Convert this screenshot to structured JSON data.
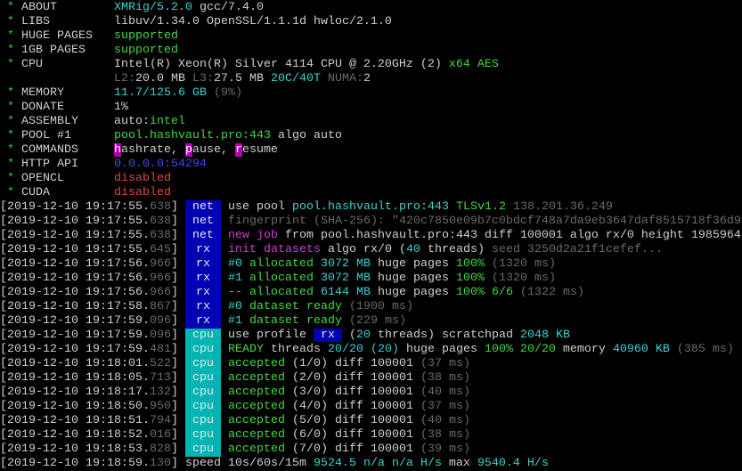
{
  "colors": {
    "white": "#d0d0d0",
    "green": "#41d941",
    "cyan": "#3cd2d2",
    "dim": "#6a6a6a",
    "magenta": "#d23cd2",
    "blue": "#4646e6",
    "red": "#e04646",
    "tag_blue": "#0000b4",
    "tag_cyan": "#00b4b4"
  },
  "header": [
    {
      "bullet": "*",
      "label": "ABOUT",
      "segs": [
        {
          "t": "XMRig/5.2.0",
          "c": "c"
        },
        {
          "t": " gcc/7.4.0",
          "c": "w"
        }
      ]
    },
    {
      "bullet": "*",
      "label": "LIBS",
      "segs": [
        {
          "t": "libuv/1.34.0 OpenSSL/1.1.1d hwloc/2.1.0",
          "c": "w"
        }
      ]
    },
    {
      "bullet": "*",
      "label": "HUGE PAGES",
      "segs": [
        {
          "t": "supported",
          "c": "g"
        }
      ]
    },
    {
      "bullet": "*",
      "label": "1GB PAGES",
      "segs": [
        {
          "t": "supported",
          "c": "g"
        }
      ]
    },
    {
      "bullet": "*",
      "label": "CPU",
      "segs": [
        {
          "t": "Intel(R) Xeon(R) Silver 4114 CPU @ 2.20GHz (2) ",
          "c": "w"
        },
        {
          "t": "x64 AES",
          "c": "g"
        }
      ]
    },
    {
      "bullet": "",
      "label": "",
      "segs": [
        {
          "t": "L2:",
          "c": "d"
        },
        {
          "t": "20.0 MB ",
          "c": "w"
        },
        {
          "t": "L3:",
          "c": "d"
        },
        {
          "t": "27.5 MB ",
          "c": "w"
        },
        {
          "t": "20C/40T ",
          "c": "c"
        },
        {
          "t": "NUMA:",
          "c": "d"
        },
        {
          "t": "2",
          "c": "w"
        }
      ]
    },
    {
      "bullet": "*",
      "label": "MEMORY",
      "segs": [
        {
          "t": "11.7/125.6 GB ",
          "c": "c"
        },
        {
          "t": "(9%)",
          "c": "d"
        }
      ]
    },
    {
      "bullet": "*",
      "label": "DONATE",
      "segs": [
        {
          "t": "1%",
          "c": "w"
        }
      ]
    },
    {
      "bullet": "*",
      "label": "ASSEMBLY",
      "segs": [
        {
          "t": "auto:",
          "c": "w"
        },
        {
          "t": "intel",
          "c": "g"
        }
      ]
    },
    {
      "bullet": "*",
      "label": "POOL #1",
      "segs": [
        {
          "t": "pool.hashvault.pro:443 ",
          "c": "g"
        },
        {
          "t": "algo auto",
          "c": "w"
        }
      ]
    },
    {
      "bullet": "*",
      "label": "COMMANDS",
      "segs": [
        {
          "t": "h",
          "c": "hl"
        },
        {
          "t": "ashrate, ",
          "c": "w"
        },
        {
          "t": "p",
          "c": "hl"
        },
        {
          "t": "ause, ",
          "c": "w"
        },
        {
          "t": "r",
          "c": "hl"
        },
        {
          "t": "esume",
          "c": "w"
        }
      ]
    },
    {
      "bullet": "*",
      "label": "HTTP API",
      "segs": [
        {
          "t": "0.0.0.0:54294",
          "c": "b"
        }
      ]
    },
    {
      "bullet": "*",
      "label": "OPENCL",
      "segs": [
        {
          "t": "disabled",
          "c": "r"
        }
      ]
    },
    {
      "bullet": "*",
      "label": "CUDA",
      "segs": [
        {
          "t": "disabled",
          "c": "r"
        }
      ]
    }
  ],
  "log": [
    {
      "time": "2019-12-10 19:17:55",
      "ms": "638",
      "tag": "net",
      "segs": [
        {
          "t": "use pool ",
          "c": "w"
        },
        {
          "t": "pool.hashvault.pro:443 ",
          "c": "c"
        },
        {
          "t": "TLSv1.2 ",
          "c": "g"
        },
        {
          "t": "138.201.36.249",
          "c": "d"
        }
      ]
    },
    {
      "time": "2019-12-10 19:17:55",
      "ms": "638",
      "tag": "net",
      "segs": [
        {
          "t": "fingerprint (SHA-256): \"420c7850e09b7c0bdcf748a7da9eb3647daf8515718f36d9",
          "c": "d"
        }
      ]
    },
    {
      "time": "2019-12-10 19:17:55",
      "ms": "638",
      "tag": "net",
      "segs": [
        {
          "t": "new job",
          "c": "m"
        },
        {
          "t": " from pool.hashvault.pro:443 diff 100001 algo rx/0 height 1985964",
          "c": "w"
        }
      ]
    },
    {
      "time": "2019-12-10 19:17:55",
      "ms": "645",
      "tag": "rx",
      "segs": [
        {
          "t": "init datasets",
          "c": "m"
        },
        {
          "t": " algo rx/0 (",
          "c": "w"
        },
        {
          "t": "40",
          "c": "c"
        },
        {
          "t": " threads) ",
          "c": "w"
        },
        {
          "t": "seed 3250d2a21f1cefef...",
          "c": "d"
        }
      ]
    },
    {
      "time": "2019-12-10 19:17:56",
      "ms": "966",
      "tag": "rx",
      "segs": [
        {
          "t": "#0",
          "c": "c"
        },
        {
          "t": " allocated",
          "c": "g"
        },
        {
          "t": " 3072 MB",
          "c": "c"
        },
        {
          "t": " huge pages ",
          "c": "w"
        },
        {
          "t": "100%",
          "c": "g"
        },
        {
          "t": " (1320 ms)",
          "c": "d"
        }
      ]
    },
    {
      "time": "2019-12-10 19:17:56",
      "ms": "966",
      "tag": "rx",
      "segs": [
        {
          "t": "#1",
          "c": "c"
        },
        {
          "t": " allocated",
          "c": "g"
        },
        {
          "t": " 3072 MB",
          "c": "c"
        },
        {
          "t": " huge pages ",
          "c": "w"
        },
        {
          "t": "100%",
          "c": "g"
        },
        {
          "t": " (1320 ms)",
          "c": "d"
        }
      ]
    },
    {
      "time": "2019-12-10 19:17:56",
      "ms": "966",
      "tag": "rx",
      "segs": [
        {
          "t": "--",
          "c": "c"
        },
        {
          "t": " allocated",
          "c": "g"
        },
        {
          "t": " 6144 MB",
          "c": "c"
        },
        {
          "t": " huge pages ",
          "c": "w"
        },
        {
          "t": "100% 6/6",
          "c": "g"
        },
        {
          "t": " (1322 ms)",
          "c": "d"
        }
      ]
    },
    {
      "time": "2019-12-10 19:17:58",
      "ms": "867",
      "tag": "rx",
      "segs": [
        {
          "t": "#0",
          "c": "c"
        },
        {
          "t": " dataset ready",
          "c": "g"
        },
        {
          "t": " (1900 ms)",
          "c": "d"
        }
      ]
    },
    {
      "time": "2019-12-10 19:17:59",
      "ms": "096",
      "tag": "rx",
      "segs": [
        {
          "t": "#1",
          "c": "c"
        },
        {
          "t": " dataset ready",
          "c": "g"
        },
        {
          "t": " (229 ms)",
          "c": "d"
        }
      ]
    },
    {
      "time": "2019-12-10 19:17:59",
      "ms": "096",
      "tag": "cpu",
      "segs": [
        {
          "t": "use profile ",
          "c": "w"
        },
        {
          "t": " rx ",
          "c": "bx"
        },
        {
          "t": " (",
          "c": "w"
        },
        {
          "t": "20",
          "c": "c"
        },
        {
          "t": " threads) scratchpad ",
          "c": "w"
        },
        {
          "t": "2048 KB",
          "c": "c"
        }
      ]
    },
    {
      "time": "2019-12-10 19:17:59",
      "ms": "481",
      "tag": "cpu",
      "segs": [
        {
          "t": "READY",
          "c": "g"
        },
        {
          "t": " threads ",
          "c": "w"
        },
        {
          "t": "20/20 (20)",
          "c": "c"
        },
        {
          "t": " huge pages ",
          "c": "w"
        },
        {
          "t": "100% 20/20",
          "c": "g"
        },
        {
          "t": " memory ",
          "c": "w"
        },
        {
          "t": "40960 KB",
          "c": "c"
        },
        {
          "t": " (385 ms)",
          "c": "d"
        }
      ]
    },
    {
      "time": "2019-12-10 19:18:01",
      "ms": "522",
      "tag": "cpu",
      "segs": [
        {
          "t": "accepted",
          "c": "g"
        },
        {
          "t": " (1/0) diff 100001 ",
          "c": "w"
        },
        {
          "t": "(37 ms)",
          "c": "d"
        }
      ]
    },
    {
      "time": "2019-12-10 19:18:05",
      "ms": "713",
      "tag": "cpu",
      "segs": [
        {
          "t": "accepted",
          "c": "g"
        },
        {
          "t": " (2/0) diff 100001 ",
          "c": "w"
        },
        {
          "t": "(38 ms)",
          "c": "d"
        }
      ]
    },
    {
      "time": "2019-12-10 19:18:17",
      "ms": "132",
      "tag": "cpu",
      "segs": [
        {
          "t": "accepted",
          "c": "g"
        },
        {
          "t": " (3/0) diff 100001 ",
          "c": "w"
        },
        {
          "t": "(40 ms)",
          "c": "d"
        }
      ]
    },
    {
      "time": "2019-12-10 19:18:50",
      "ms": "950",
      "tag": "cpu",
      "segs": [
        {
          "t": "accepted",
          "c": "g"
        },
        {
          "t": " (4/0) diff 100001 ",
          "c": "w"
        },
        {
          "t": "(37 ms)",
          "c": "d"
        }
      ]
    },
    {
      "time": "2019-12-10 19:18:51",
      "ms": "794",
      "tag": "cpu",
      "segs": [
        {
          "t": "accepted",
          "c": "g"
        },
        {
          "t": " (5/0) diff 100001 ",
          "c": "w"
        },
        {
          "t": "(40 ms)",
          "c": "d"
        }
      ]
    },
    {
      "time": "2019-12-10 19:18:52",
      "ms": "016",
      "tag": "cpu",
      "segs": [
        {
          "t": "accepted",
          "c": "g"
        },
        {
          "t": " (6/0) diff 100001 ",
          "c": "w"
        },
        {
          "t": "(38 ms)",
          "c": "d"
        }
      ]
    },
    {
      "time": "2019-12-10 19:18:53",
      "ms": "828",
      "tag": "cpu",
      "segs": [
        {
          "t": "accepted",
          "c": "g"
        },
        {
          "t": " (7/0) diff 100001 ",
          "c": "w"
        },
        {
          "t": "(39 ms)",
          "c": "d"
        }
      ]
    },
    {
      "time": "2019-12-10 19:18:59",
      "ms": "130",
      "tag": "",
      "segs": [
        {
          "t": "speed 10s/60s/15m ",
          "c": "w"
        },
        {
          "t": "9524.5 n/a n/a H/s",
          "c": "c"
        },
        {
          "t": " max ",
          "c": "w"
        },
        {
          "t": "9540.4 H/s",
          "c": "c"
        }
      ]
    }
  ]
}
